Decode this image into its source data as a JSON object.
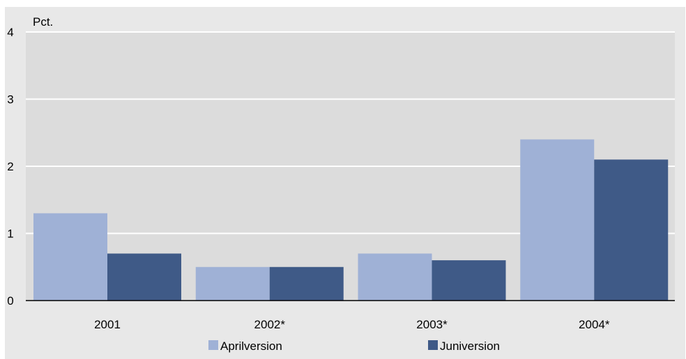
{
  "chart_data": {
    "type": "bar",
    "ylabel": "Pct.",
    "categories": [
      "2001",
      "2002*",
      "2003*",
      "2004*"
    ],
    "series": [
      {
        "name": "Aprilversion",
        "values": [
          1.3,
          0.5,
          0.7,
          2.4
        ],
        "color": "#9fb1d6"
      },
      {
        "name": "Juniversion",
        "values": [
          0.7,
          0.5,
          0.6,
          2.1
        ],
        "color": "#3f5a87"
      }
    ],
    "ylim": [
      0,
      4
    ],
    "yticks": [
      "0",
      "1",
      "2",
      "3",
      "4"
    ],
    "grid": true,
    "legend_position": "bottom",
    "plot_background": "#dcdcdc",
    "frame_background": "#e8e8e8"
  }
}
